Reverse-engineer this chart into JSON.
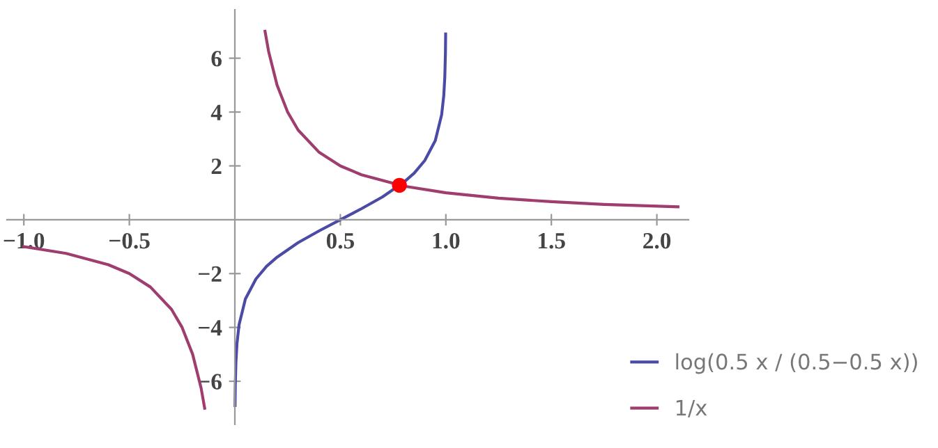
{
  "chart_data": {
    "type": "line",
    "xlim": [
      -1.08,
      2.15
    ],
    "ylim": [
      -7.6,
      7.8
    ],
    "xticks": [
      {
        "value": -1.0,
        "label": "−1.0"
      },
      {
        "value": -0.5,
        "label": "−0.5"
      },
      {
        "value": 0.5,
        "label": "0.5"
      },
      {
        "value": 1.0,
        "label": "1.0"
      },
      {
        "value": 1.5,
        "label": "1.5"
      },
      {
        "value": 2.0,
        "label": "2.0"
      }
    ],
    "yticks": [
      {
        "value": -6,
        "label": "−6"
      },
      {
        "value": -4,
        "label": "−4"
      },
      {
        "value": -2,
        "label": "−2"
      },
      2,
      4,
      6
    ],
    "legend": "bottom right",
    "grid": false,
    "marker": "none",
    "line_style": "solid",
    "series": [
      {
        "name": "log(0.5 x / (0.5−0.5 x))",
        "color": "#4b4ba6",
        "x": [
          0.001,
          0.002,
          0.005,
          0.01,
          0.02,
          0.05,
          0.1,
          0.15,
          0.2,
          0.3,
          0.4,
          0.5,
          0.6,
          0.7,
          0.8,
          0.85,
          0.9,
          0.95,
          0.98,
          0.99,
          0.995,
          0.998,
          0.999
        ],
        "values": [
          -6.9,
          -6.2,
          -5.3,
          -4.6,
          -3.9,
          -2.94,
          -2.2,
          -1.73,
          -1.39,
          -0.85,
          -0.41,
          0,
          0.41,
          0.85,
          1.39,
          1.73,
          2.2,
          2.94,
          3.9,
          4.6,
          5.3,
          6.2,
          6.9
        ]
      },
      {
        "name": "1/x",
        "color": "#9e3d6e",
        "x": [
          -1,
          -0.8,
          -0.6,
          -0.5,
          -0.4,
          -0.3,
          -0.25,
          -0.2,
          -0.16,
          -0.143,
          0,
          0.143,
          0.16,
          0.2,
          0.25,
          0.3,
          0.4,
          0.5,
          0.6,
          0.8,
          1,
          1.25,
          1.5,
          1.75,
          2.1
        ],
        "values": [
          -1,
          -1.25,
          -1.67,
          -2,
          -2.5,
          -3.33,
          -4,
          -5,
          -6.25,
          -7,
          null,
          7,
          6.25,
          5,
          4,
          3.33,
          2.5,
          2,
          1.67,
          1.25,
          1,
          0.8,
          0.67,
          0.57,
          0.48
        ]
      },
      {
        "type": "scatter",
        "color": "#ff0000",
        "marker": "circle",
        "x": [
          0.78
        ],
        "values": [
          1.28
        ]
      }
    ]
  }
}
